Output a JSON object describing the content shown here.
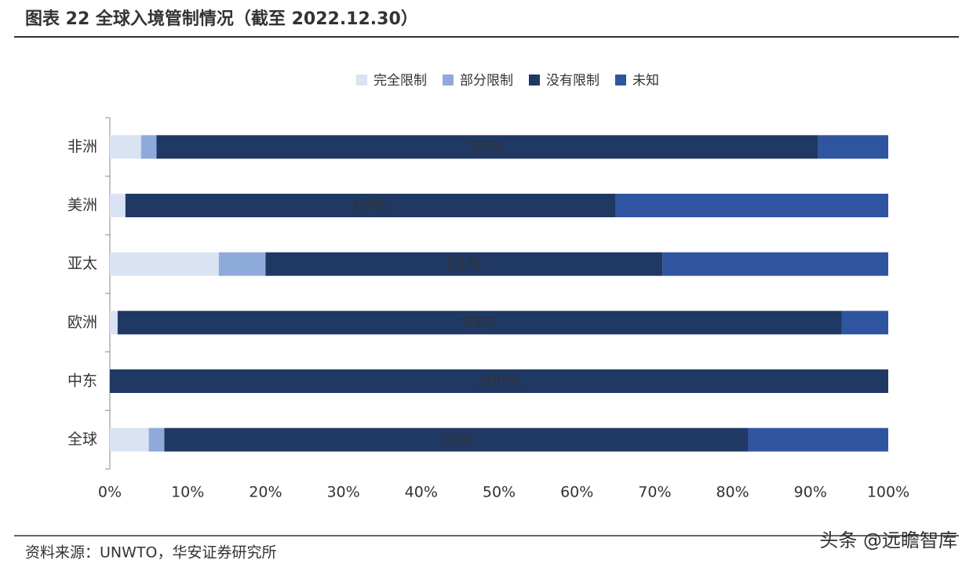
{
  "title": "图表 22 全球入境管制情况（截至 2022.12.30）",
  "source": "资料来源：UNWTO，华安证券研究所",
  "watermark": "头条 @远瞻智库",
  "chart_data": {
    "type": "stacked_barh",
    "categories": [
      "非洲",
      "美洲",
      "亚太",
      "欧洲",
      "中东",
      "全球"
    ],
    "series": [
      {
        "name": "完全限制",
        "color": "#dae3f3",
        "values": [
          4,
          2,
          14,
          1,
          0,
          5
        ]
      },
      {
        "name": "部分限制",
        "color": "#8eaadb",
        "values": [
          2,
          0,
          6,
          0,
          0,
          2
        ]
      },
      {
        "name": "没有限制",
        "color": "#1f3864",
        "values": [
          85,
          63,
          51,
          93,
          100,
          75
        ],
        "value_labels": [
          "85%",
          "63%",
          "51%",
          "93%",
          "100%",
          "75%"
        ]
      },
      {
        "name": "未知",
        "color": "#2f55a0",
        "values": [
          9,
          35,
          29,
          6,
          0,
          18
        ]
      }
    ],
    "xlim": [
      0,
      100
    ],
    "xticks": [
      {
        "value": 0,
        "label": "0%"
      },
      {
        "value": 10,
        "label": "10%"
      },
      {
        "value": 20,
        "label": "20%"
      },
      {
        "value": 30,
        "label": "30%"
      },
      {
        "value": 40,
        "label": "40%"
      },
      {
        "value": 50,
        "label": "50%"
      },
      {
        "value": 60,
        "label": "60%"
      },
      {
        "value": 70,
        "label": "70%"
      },
      {
        "value": 80,
        "label": "80%"
      },
      {
        "value": 90,
        "label": "90%"
      },
      {
        "value": 100,
        "label": "100%"
      }
    ],
    "legend": "top"
  }
}
